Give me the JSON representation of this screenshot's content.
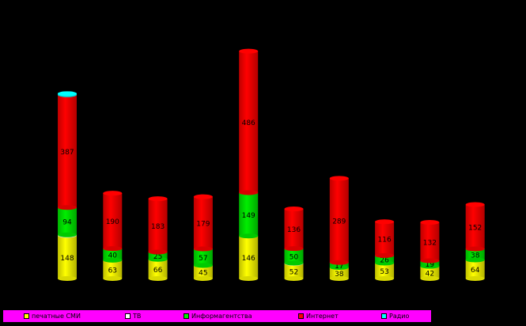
{
  "chart_data": {
    "type": "bar",
    "stacked": true,
    "categories": [
      "",
      "",
      "",
      "",
      "",
      "",
      "",
      "",
      "",
      ""
    ],
    "series": [
      {
        "name": "печатные СМИ",
        "color": "#ffff00",
        "values": [
          148,
          63,
          66,
          45,
          146,
          52,
          38,
          53,
          42,
          64
        ]
      },
      {
        "name": "ТВ",
        "color": "#ffffff",
        "values": [
          2,
          0,
          0,
          0,
          0,
          1,
          0,
          0,
          0,
          0
        ]
      },
      {
        "name": "Информагентства",
        "color": "#00ee00",
        "values": [
          94,
          40,
          25,
          57,
          149,
          50,
          17,
          26,
          19,
          38
        ]
      },
      {
        "name": "Интернет",
        "color": "#ff0000",
        "values": [
          387,
          190,
          183,
          179,
          486,
          136,
          289,
          116,
          132,
          152
        ]
      },
      {
        "name": "Радио",
        "color": "#00ffff",
        "values": [
          4,
          0,
          0,
          0,
          0,
          0,
          0,
          0,
          0,
          0
        ]
      }
    ],
    "labels": [
      [
        "148",
        "",
        "94",
        "387",
        ""
      ],
      [
        "63",
        "",
        "40",
        "190",
        ""
      ],
      [
        "66",
        "",
        "25",
        "183",
        ""
      ],
      [
        "45",
        "",
        "57",
        "179",
        ""
      ],
      [
        "146",
        "",
        "149",
        "486",
        ""
      ],
      [
        "52",
        "",
        "50",
        "136",
        ""
      ],
      [
        "38",
        "",
        "17",
        "289",
        ""
      ],
      [
        "53",
        "",
        "26",
        "116",
        ""
      ],
      [
        "42",
        "",
        "19",
        "132",
        ""
      ],
      [
        "64",
        "",
        "38",
        "152",
        ""
      ]
    ],
    "ylim": [
      0,
      800
    ],
    "grid": false,
    "legend_position": "bottom",
    "background": "#000000",
    "legend_background": "#ff00ff"
  }
}
